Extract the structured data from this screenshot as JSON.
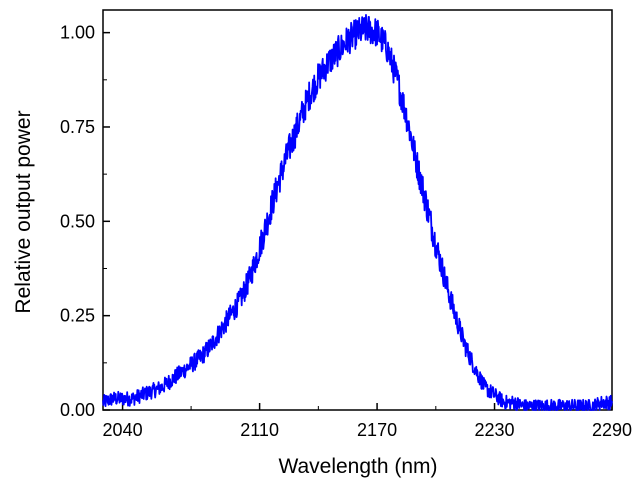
{
  "chart_data": {
    "type": "line",
    "title": "",
    "xlabel": "Wavelength (nm)",
    "ylabel": "Relative output power",
    "xlim": [
      2030,
      2290
    ],
    "ylim": [
      0,
      1.06
    ],
    "xticks": [
      2040,
      2110,
      2170,
      2230,
      2290
    ],
    "yticks": [
      0.0,
      0.25,
      0.5,
      0.75,
      1.0
    ],
    "xtick_labels": [
      "2040",
      "2110",
      "2170",
      "2230",
      "2290"
    ],
    "ytick_labels": [
      "0.00",
      "0.25",
      "0.50",
      "0.75",
      "1.00"
    ],
    "grid": false,
    "legend": "none",
    "line_color": "#0000ff",
    "series": [
      {
        "x": [
          2030,
          2035,
          2040,
          2045,
          2050,
          2055,
          2060,
          2065,
          2070,
          2075,
          2080,
          2085,
          2090,
          2095,
          2100,
          2105,
          2110,
          2115,
          2120,
          2125,
          2130,
          2135,
          2140,
          2145,
          2150,
          2155,
          2160,
          2165,
          2170,
          2175,
          2180,
          2185,
          2190,
          2195,
          2200,
          2205,
          2210,
          2215,
          2220,
          2225,
          2230,
          2235,
          2240,
          2245,
          2250,
          2255,
          2260,
          2265,
          2270,
          2275,
          2280,
          2285,
          2290
        ],
        "values": [
          0.02,
          0.03,
          0.03,
          0.03,
          0.04,
          0.05,
          0.06,
          0.08,
          0.1,
          0.12,
          0.14,
          0.17,
          0.21,
          0.25,
          0.29,
          0.35,
          0.43,
          0.52,
          0.61,
          0.69,
          0.76,
          0.83,
          0.88,
          0.92,
          0.95,
          0.98,
          1.0,
          1.01,
          1.0,
          0.96,
          0.88,
          0.78,
          0.66,
          0.55,
          0.44,
          0.34,
          0.25,
          0.17,
          0.11,
          0.06,
          0.04,
          0.02,
          0.02,
          0.01,
          0.01,
          0.01,
          0.01,
          0.01,
          0.01,
          0.01,
          0.01,
          0.02,
          0.02
        ]
      }
    ]
  }
}
